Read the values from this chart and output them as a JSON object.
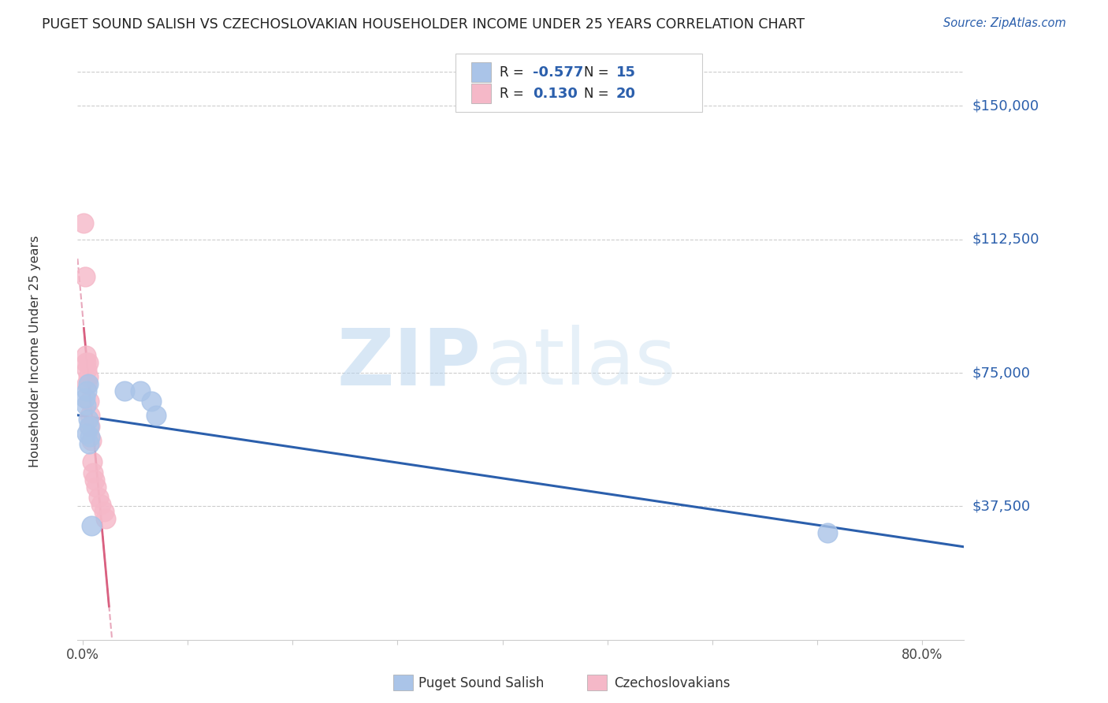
{
  "title": "PUGET SOUND SALISH VS CZECHOSLOVAKIAN HOUSEHOLDER INCOME UNDER 25 YEARS CORRELATION CHART",
  "source": "Source: ZipAtlas.com",
  "ylabel": "Householder Income Under 25 years",
  "ytick_labels": [
    "$37,500",
    "$75,000",
    "$112,500",
    "$150,000"
  ],
  "ytick_values": [
    37500,
    75000,
    112500,
    150000
  ],
  "ymin": 0,
  "ymax": 162000,
  "xmin": -0.005,
  "xmax": 0.84,
  "blue_R": -0.577,
  "blue_N": 15,
  "pink_R": 0.13,
  "pink_N": 20,
  "blue_color": "#aac4e8",
  "blue_line_color": "#2b5fac",
  "pink_color": "#f5b8c8",
  "pink_line_color": "#d96080",
  "pink_dash_color": "#e8a8bc",
  "blue_x": [
    0.002,
    0.003,
    0.004,
    0.004,
    0.005,
    0.005,
    0.006,
    0.006,
    0.007,
    0.008,
    0.04,
    0.055,
    0.065,
    0.07,
    0.71
  ],
  "blue_y": [
    68000,
    66000,
    70000,
    58000,
    72000,
    62000,
    60000,
    55000,
    57000,
    32000,
    70000,
    70000,
    67000,
    63000,
    30000
  ],
  "pink_x": [
    0.001,
    0.002,
    0.003,
    0.003,
    0.004,
    0.004,
    0.005,
    0.005,
    0.006,
    0.007,
    0.007,
    0.008,
    0.009,
    0.01,
    0.011,
    0.013,
    0.015,
    0.017,
    0.02,
    0.022
  ],
  "pink_y": [
    117000,
    102000,
    80000,
    78000,
    76000,
    72000,
    78000,
    74000,
    67000,
    63000,
    60000,
    56000,
    50000,
    47000,
    45000,
    43000,
    40000,
    38000,
    36000,
    34000
  ],
  "legend_label_blue": "Puget Sound Salish",
  "legend_label_pink": "Czechoslovakians",
  "watermark_zip": "ZIP",
  "watermark_atlas": "atlas",
  "background_color": "#ffffff",
  "grid_color": "#cccccc"
}
